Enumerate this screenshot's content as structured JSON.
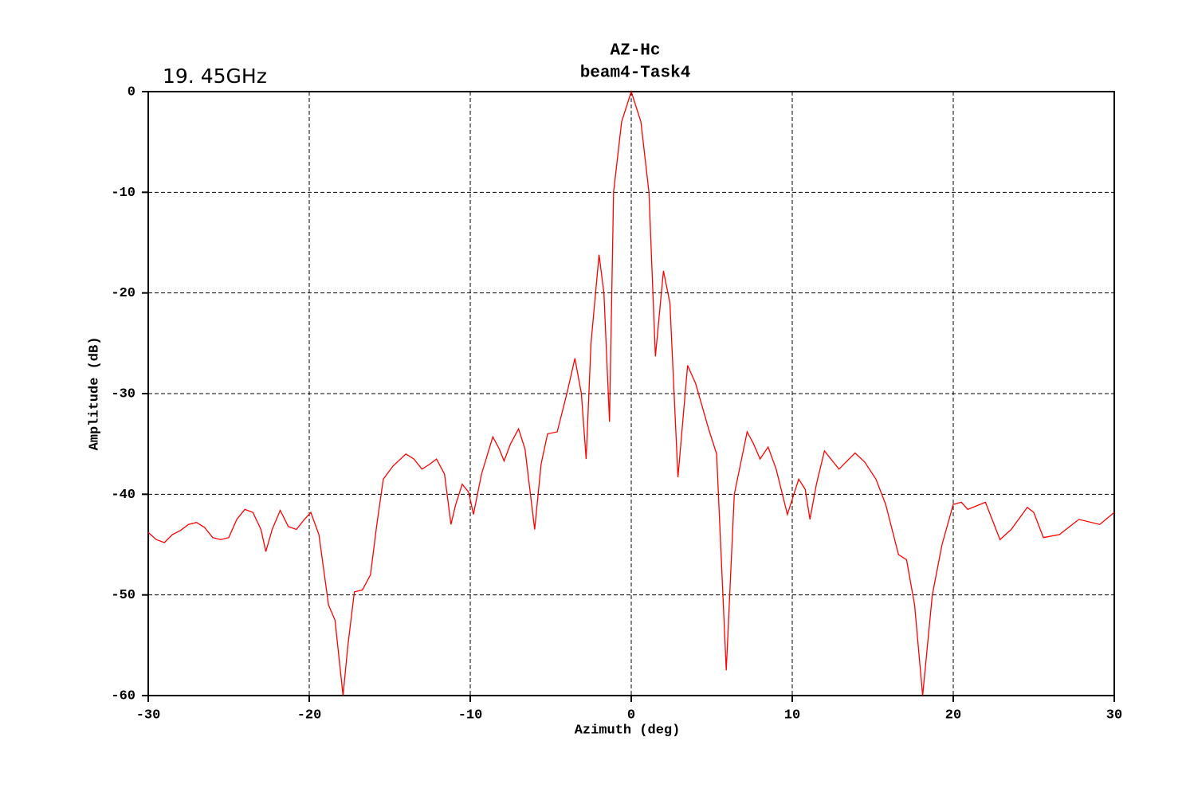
{
  "chart_data": {
    "type": "line",
    "title": "AZ-Hc",
    "subtitle": "beam4-Task4",
    "annotation": "19. 45GHz",
    "xlabel": "Azimuth (deg)",
    "ylabel": "Amplitude (dB)",
    "x": [
      -30,
      -29.5,
      -29,
      -28.5,
      -28,
      -27.5,
      -27,
      -26.5,
      -26,
      -25.5,
      -25,
      -24.5,
      -24,
      -23.5,
      -23,
      -22.7,
      -22.3,
      -21.8,
      -21.3,
      -20.8,
      -20.3,
      -19.9,
      -19.4,
      -18.8,
      -18.4,
      -17.9,
      -17.6,
      -17.2,
      -16.7,
      -16.2,
      -15.8,
      -15.4,
      -14.8,
      -14,
      -13.5,
      -13,
      -12.5,
      -12.1,
      -11.6,
      -11.2,
      -10.9,
      -10.5,
      -10.1,
      -9.8,
      -9.3,
      -8.6,
      -8.2,
      -7.9,
      -7.5,
      -7,
      -6.6,
      -6,
      -5.6,
      -5.2,
      -4.6,
      -4,
      -3.5,
      -3.1,
      -2.8,
      -2.5,
      -2,
      -1.7,
      -1.35,
      -1.1,
      -0.6,
      0,
      0.6,
      1.1,
      1.5,
      2,
      2.4,
      2.9,
      3.5,
      4,
      4.8,
      5.3,
      5.9,
      6.4,
      7.2,
      7.6,
      8,
      8.5,
      9,
      9.7,
      10.1,
      10.4,
      10.8,
      11.1,
      11.5,
      12,
      12.5,
      12.9,
      13.9,
      14.5,
      15.2,
      15.8,
      16.6,
      17.1,
      17.6,
      18.1,
      18.7,
      19.3,
      20,
      20.5,
      20.9,
      22,
      22.9,
      23.6,
      24.6,
      25,
      25.6,
      26.6,
      27,
      27.8,
      29.1,
      30
    ],
    "values": [
      -43.8,
      -44.5,
      -44.8,
      -44.0,
      -43.6,
      -43.0,
      -42.8,
      -43.3,
      -44.3,
      -44.5,
      -44.3,
      -42.5,
      -41.5,
      -41.8,
      -43.5,
      -45.7,
      -43.5,
      -41.6,
      -43.2,
      -43.5,
      -42.5,
      -41.8,
      -44,
      -51,
      -52.5,
      -60,
      -55,
      -49.7,
      -49.5,
      -48,
      -43,
      -38.5,
      -37.2,
      -36,
      -36.5,
      -37.5,
      -37,
      -36.5,
      -38,
      -43,
      -41,
      -39,
      -39.8,
      -42,
      -38,
      -34.3,
      -35.5,
      -36.7,
      -35,
      -33.5,
      -35.5,
      -43.5,
      -37,
      -34,
      -33.8,
      -30,
      -26.5,
      -30,
      -36.5,
      -25,
      -16.2,
      -20,
      -32.8,
      -10,
      -3,
      0,
      -3,
      -10,
      -26.3,
      -17.8,
      -21,
      -38.3,
      -27.2,
      -29,
      -33.5,
      -36,
      -57.5,
      -40,
      -33.8,
      -35,
      -36.5,
      -35.3,
      -37.5,
      -42,
      -40,
      -38.5,
      -39.5,
      -42.5,
      -39,
      -35.7,
      -36.7,
      -37.5,
      -35.9,
      -36.8,
      -38.5,
      -41,
      -46,
      -46.5,
      -51,
      -60,
      -50,
      -45,
      -41,
      -40.8,
      -41.5,
      -40.8,
      -44.5,
      -43.5,
      -41.3,
      -41.8,
      -44.3,
      -44,
      -43.5,
      -42.5,
      -43,
      -41.8
    ],
    "color": "#ff0000",
    "xlim": [
      -30,
      30
    ],
    "ylim": [
      -60,
      0
    ],
    "xticks": [
      -30,
      -20,
      -10,
      0,
      10,
      20,
      30
    ],
    "yticks": [
      0,
      -10,
      -20,
      -30,
      -40,
      -50,
      -60
    ],
    "grid": true
  }
}
